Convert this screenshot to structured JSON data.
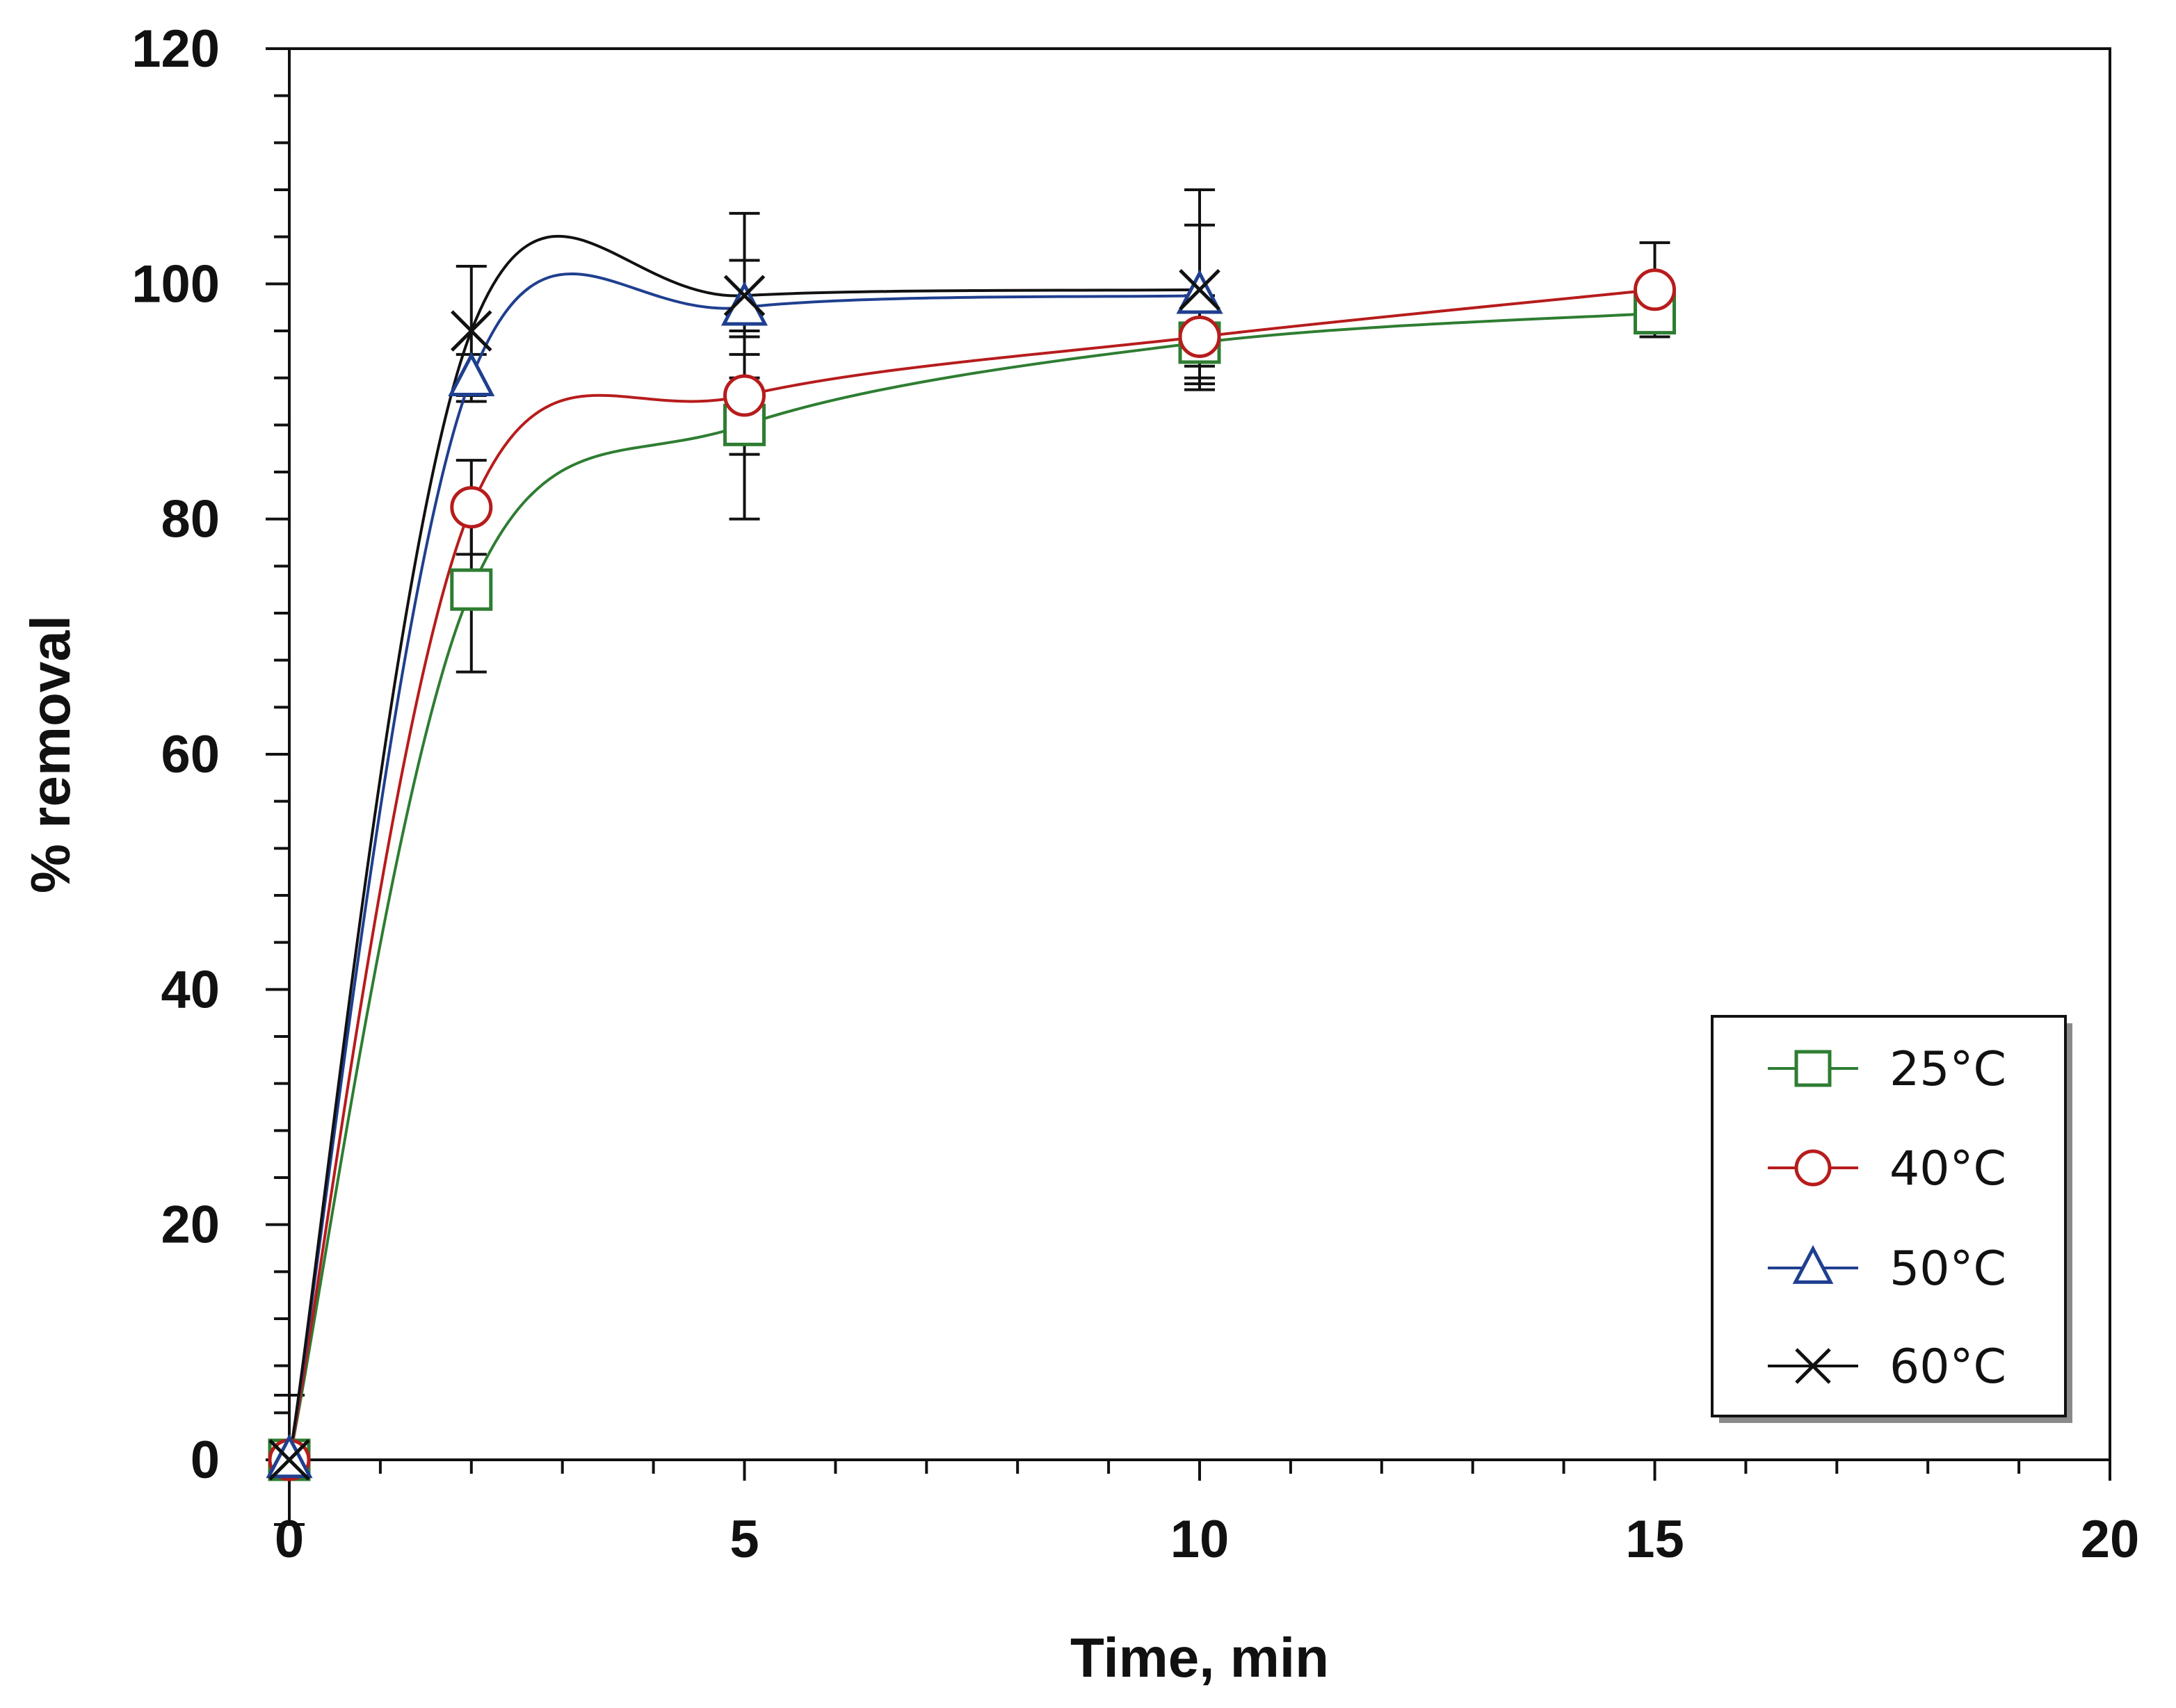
{
  "chart_data": {
    "type": "line",
    "title": "",
    "xlabel": "Time, min",
    "ylabel": "% removal",
    "xlim": [
      0,
      20
    ],
    "ylim": [
      0,
      120
    ],
    "x_ticks": [
      0,
      5,
      10,
      15,
      20
    ],
    "y_ticks": [
      0,
      20,
      40,
      60,
      80,
      100,
      120
    ],
    "x_tick_labels": [
      "0",
      "5",
      "10",
      "15",
      "20"
    ],
    "y_tick_labels": [
      "0",
      "20",
      "40",
      "60",
      "80",
      "100",
      "120"
    ],
    "grid": false,
    "legend_position": "bottom-right",
    "series": [
      {
        "name": "25°C",
        "marker": "square",
        "color": "#2e7d32",
        "x": [
          0,
          2,
          5,
          10,
          15
        ],
        "y": [
          0,
          74,
          88,
          95,
          97.5
        ],
        "error": [
          0,
          7,
          8,
          3.5,
          0
        ]
      },
      {
        "name": "40°C",
        "marker": "circle",
        "color": "#b71c1c",
        "x": [
          0,
          2,
          5,
          10,
          15
        ],
        "y": [
          0,
          81,
          90.5,
          95.5,
          99.5
        ],
        "error": [
          0,
          4,
          5,
          3.5,
          4
        ]
      },
      {
        "name": "50°C",
        "marker": "triangle",
        "color": "#1f3f8f",
        "x": [
          0,
          2,
          5,
          10
        ],
        "y": [
          0,
          92,
          98,
          99
        ],
        "error": [
          0,
          2,
          4,
          6
        ]
      },
      {
        "name": "60°C",
        "marker": "x",
        "color": "#111111",
        "x": [
          0,
          2,
          5,
          10
        ],
        "y": [
          0,
          96,
          99,
          99.5
        ],
        "error": [
          5.5,
          5.5,
          7,
          8.5
        ]
      }
    ]
  }
}
